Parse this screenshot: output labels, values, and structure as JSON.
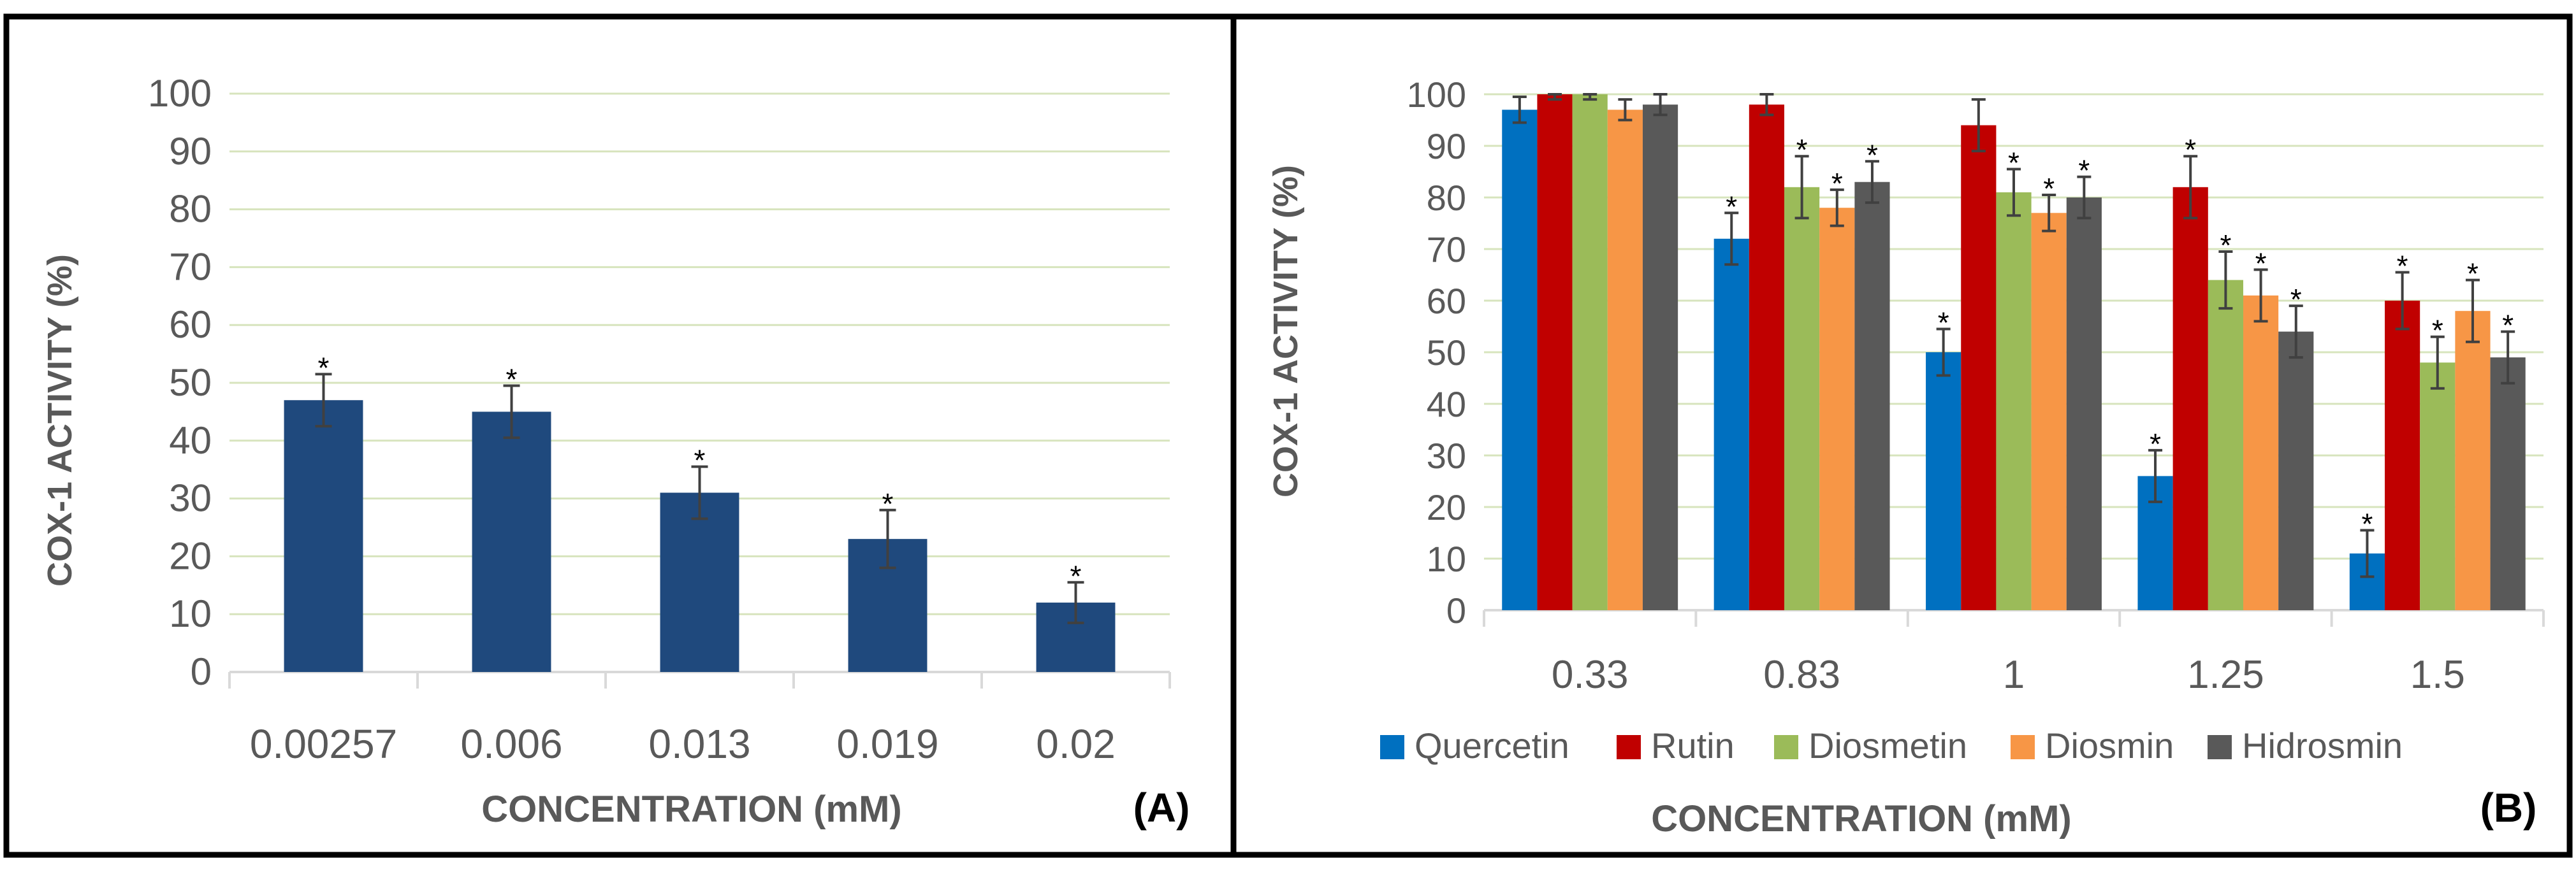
{
  "colors": {
    "bar_a": "#1f497d",
    "grid": "#d7e4bd",
    "axis_text": "#595959",
    "border": "#000000",
    "error": "#404040"
  },
  "panel_labels": {
    "a": "(A)",
    "b": "(B)"
  },
  "chart_data": [
    {
      "type": "bar",
      "panel": "A",
      "title": "",
      "xlabel": "CONCENTRATION (mM)",
      "ylabel": "COX-1 ACTIVITY (%)",
      "ylim": [
        0,
        100
      ],
      "yticks": [
        "0",
        "10",
        "20",
        "30",
        "40",
        "50",
        "60",
        "70",
        "80",
        "90",
        "100"
      ],
      "grid": true,
      "categories": [
        "0.00257",
        "0.006",
        "0.013",
        "0.019",
        "0.02"
      ],
      "values": [
        47,
        45,
        31,
        23,
        12
      ],
      "errors": [
        4.5,
        4.5,
        4.5,
        5,
        3.5
      ],
      "significance": [
        "*",
        "*",
        "*",
        "*",
        "*"
      ]
    },
    {
      "type": "bar",
      "panel": "B",
      "title": "",
      "xlabel": "CONCENTRATION (mM)",
      "ylabel": "COX-1 ACTIVITY (%)",
      "ylim": [
        0,
        100
      ],
      "yticks": [
        "0",
        "10",
        "20",
        "30",
        "40",
        "50",
        "60",
        "70",
        "80",
        "90",
        "100"
      ],
      "grid": true,
      "legend_position": "bottom",
      "categories": [
        "0.33",
        "0.83",
        "1",
        "1.25",
        "1.5"
      ],
      "series": [
        {
          "name": "Quercetin",
          "color": "#0070c0",
          "values": [
            97,
            72,
            50,
            26,
            11
          ],
          "errors": [
            2.5,
            5,
            4.5,
            5,
            4.5
          ],
          "significance": [
            "",
            "*",
            "*",
            "*",
            "*"
          ]
        },
        {
          "name": "Rutin",
          "color": "#c00000",
          "values": [
            100,
            98,
            94,
            82,
            60
          ],
          "errors": [
            1,
            2,
            5,
            6,
            5.5
          ],
          "significance": [
            "",
            "",
            "",
            "*",
            "*"
          ]
        },
        {
          "name": "Diosmetin",
          "color": "#9bbb59",
          "values": [
            100,
            82,
            81,
            64,
            48
          ],
          "errors": [
            1,
            6,
            4.5,
            5.5,
            5
          ],
          "significance": [
            "",
            "*",
            "*",
            "*",
            "*"
          ]
        },
        {
          "name": "Diosmin",
          "color": "#f79646",
          "values": [
            97,
            78,
            77,
            61,
            58
          ],
          "errors": [
            2,
            3.5,
            3.5,
            5,
            6
          ],
          "significance": [
            "",
            "*",
            "*",
            "*",
            "*"
          ]
        },
        {
          "name": "Hidrosmin",
          "color": "#595959",
          "values": [
            98,
            83,
            80,
            54,
            49
          ],
          "errors": [
            2,
            4,
            4,
            5,
            5
          ],
          "significance": [
            "",
            "*",
            "*",
            "*",
            "*"
          ]
        }
      ]
    }
  ]
}
